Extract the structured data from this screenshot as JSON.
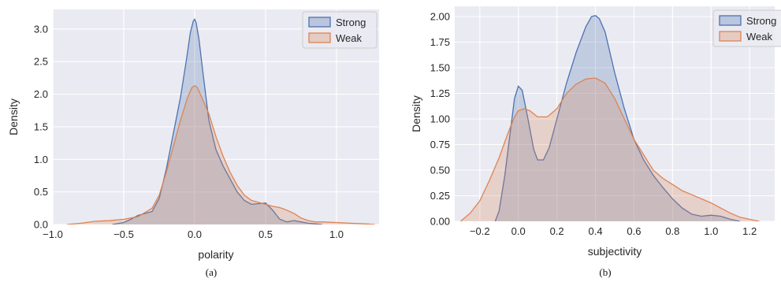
{
  "chart_data": [
    {
      "type": "area",
      "caption": "(a)",
      "xlabel": "polarity",
      "ylabel": "Density",
      "xlim": [
        -1.0,
        1.3
      ],
      "ylim": [
        0,
        3.3
      ],
      "xticks": [
        -1.0,
        -0.5,
        0.0,
        0.5,
        1.0
      ],
      "xtick_labels": [
        "−1.0",
        "−0.5",
        "0.0",
        "0.5",
        "1.0"
      ],
      "yticks": [
        0.0,
        0.5,
        1.0,
        1.5,
        2.0,
        2.5,
        3.0
      ],
      "ytick_labels": [
        "0.0",
        "0.5",
        "1.0",
        "1.5",
        "2.0",
        "2.5",
        "3.0"
      ],
      "grid": true,
      "legend_position": "top-right",
      "series": [
        {
          "name": "Strong",
          "color": "#4c72b0",
          "x": [
            -0.58,
            -0.5,
            -0.45,
            -0.4,
            -0.35,
            -0.3,
            -0.25,
            -0.2,
            -0.15,
            -0.1,
            -0.06,
            -0.03,
            -0.01,
            0.0,
            0.01,
            0.03,
            0.06,
            0.1,
            0.15,
            0.2,
            0.25,
            0.3,
            0.35,
            0.4,
            0.45,
            0.5,
            0.55,
            0.6,
            0.65,
            0.7,
            0.75,
            0.8,
            0.85,
            0.9
          ],
          "y": [
            0.0,
            0.03,
            0.08,
            0.14,
            0.17,
            0.2,
            0.4,
            0.85,
            1.4,
            1.95,
            2.5,
            2.95,
            3.12,
            3.15,
            3.1,
            2.85,
            2.3,
            1.6,
            1.15,
            0.9,
            0.7,
            0.5,
            0.37,
            0.31,
            0.32,
            0.33,
            0.22,
            0.08,
            0.04,
            0.06,
            0.04,
            0.02,
            0.01,
            0.0
          ]
        },
        {
          "name": "Weak",
          "color": "#dd8452",
          "x": [
            -0.9,
            -0.8,
            -0.7,
            -0.6,
            -0.5,
            -0.4,
            -0.3,
            -0.25,
            -0.2,
            -0.15,
            -0.1,
            -0.05,
            -0.02,
            0.0,
            0.02,
            0.05,
            0.1,
            0.15,
            0.2,
            0.25,
            0.3,
            0.35,
            0.4,
            0.45,
            0.5,
            0.55,
            0.6,
            0.65,
            0.7,
            0.75,
            0.8,
            0.85,
            0.9,
            1.0,
            1.1,
            1.2,
            1.27
          ],
          "y": [
            0.0,
            0.02,
            0.05,
            0.06,
            0.08,
            0.12,
            0.25,
            0.45,
            0.8,
            1.2,
            1.6,
            1.95,
            2.1,
            2.13,
            2.1,
            1.95,
            1.7,
            1.35,
            1.05,
            0.8,
            0.6,
            0.45,
            0.37,
            0.34,
            0.31,
            0.28,
            0.26,
            0.22,
            0.17,
            0.1,
            0.06,
            0.04,
            0.04,
            0.03,
            0.02,
            0.01,
            0.0
          ]
        }
      ]
    },
    {
      "type": "area",
      "caption": "(b)",
      "xlabel": "subjectivity",
      "ylabel": "Density",
      "xlim": [
        -0.33,
        1.33
      ],
      "ylim": [
        0,
        2.1
      ],
      "xticks": [
        -0.2,
        0.0,
        0.2,
        0.4,
        0.6,
        0.8,
        1.0,
        1.2
      ],
      "xtick_labels": [
        "−0.2",
        "0.0",
        "0.2",
        "0.4",
        "0.6",
        "0.8",
        "1.0",
        "1.2"
      ],
      "yticks": [
        0.0,
        0.25,
        0.5,
        0.75,
        1.0,
        1.25,
        1.5,
        1.75,
        2.0
      ],
      "ytick_labels": [
        "0.00",
        "0.25",
        "0.50",
        "0.75",
        "1.00",
        "1.25",
        "1.50",
        "1.75",
        "2.00"
      ],
      "grid": true,
      "legend_position": "top-right",
      "series": [
        {
          "name": "Strong",
          "color": "#4c72b0",
          "x": [
            -0.12,
            -0.1,
            -0.07,
            -0.04,
            -0.02,
            0.0,
            0.02,
            0.05,
            0.08,
            0.1,
            0.13,
            0.16,
            0.2,
            0.25,
            0.3,
            0.35,
            0.38,
            0.4,
            0.42,
            0.45,
            0.5,
            0.55,
            0.6,
            0.65,
            0.7,
            0.75,
            0.8,
            0.85,
            0.9,
            0.95,
            1.0,
            1.05,
            1.1,
            1.15
          ],
          "y": [
            0.0,
            0.1,
            0.45,
            0.9,
            1.2,
            1.32,
            1.28,
            1.0,
            0.7,
            0.6,
            0.6,
            0.72,
            1.0,
            1.35,
            1.65,
            1.9,
            2.0,
            2.01,
            1.98,
            1.85,
            1.45,
            1.1,
            0.8,
            0.6,
            0.45,
            0.33,
            0.22,
            0.13,
            0.07,
            0.05,
            0.06,
            0.05,
            0.02,
            0.0
          ]
        },
        {
          "name": "Weak",
          "color": "#dd8452",
          "x": [
            -0.3,
            -0.25,
            -0.2,
            -0.15,
            -0.1,
            -0.05,
            -0.02,
            0.0,
            0.03,
            0.06,
            0.1,
            0.15,
            0.2,
            0.25,
            0.3,
            0.35,
            0.4,
            0.45,
            0.5,
            0.55,
            0.6,
            0.65,
            0.7,
            0.75,
            0.8,
            0.85,
            0.9,
            0.95,
            1.0,
            1.05,
            1.1,
            1.15,
            1.2,
            1.25
          ],
          "y": [
            0.0,
            0.08,
            0.2,
            0.4,
            0.62,
            0.88,
            1.02,
            1.08,
            1.1,
            1.08,
            1.02,
            1.02,
            1.1,
            1.25,
            1.34,
            1.39,
            1.4,
            1.35,
            1.2,
            1.0,
            0.8,
            0.65,
            0.5,
            0.42,
            0.36,
            0.3,
            0.26,
            0.22,
            0.18,
            0.13,
            0.08,
            0.04,
            0.02,
            0.0
          ]
        }
      ]
    }
  ]
}
